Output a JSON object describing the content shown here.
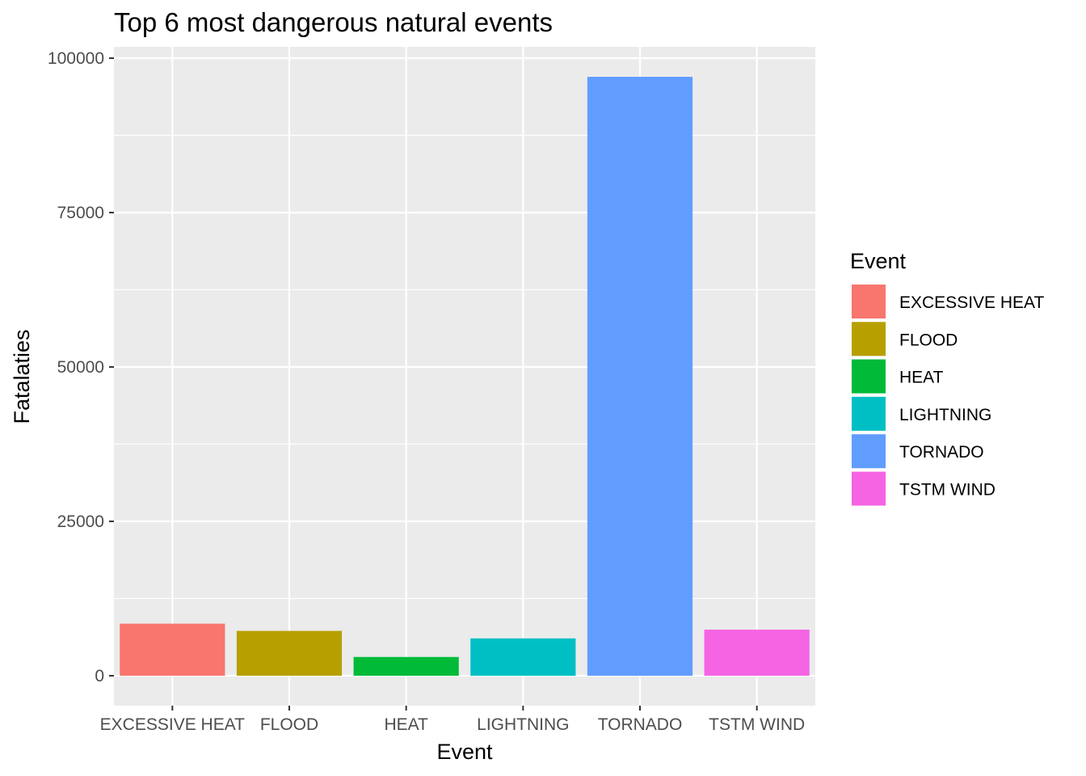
{
  "chart_data": {
    "type": "bar",
    "title": "Top 6 most dangerous natural events",
    "xlabel": "Event",
    "ylabel": "Fatalaties",
    "categories": [
      "EXCESSIVE HEAT",
      "FLOOD",
      "HEAT",
      "LIGHTNING",
      "TORNADO",
      "TSTM WIND"
    ],
    "values": [
      8428,
      7259,
      3037,
      6046,
      96979,
      7461
    ],
    "colors": [
      "#F8766D",
      "#B79F00",
      "#00BA38",
      "#00BFC4",
      "#619CFF",
      "#F564E3"
    ],
    "ylim": [
      -4849,
      101828
    ],
    "yticks": [
      0,
      25000,
      50000,
      75000,
      100000
    ],
    "ytick_labels": [
      "0",
      "25000",
      "50000",
      "75000",
      "100000"
    ],
    "grid": true,
    "panel_background": "#EBEBEB",
    "legend": {
      "title": "Event",
      "position": "right",
      "entries": [
        "EXCESSIVE HEAT",
        "FLOOD",
        "HEAT",
        "LIGHTNING",
        "TORNADO",
        "TSTM WIND"
      ]
    }
  }
}
